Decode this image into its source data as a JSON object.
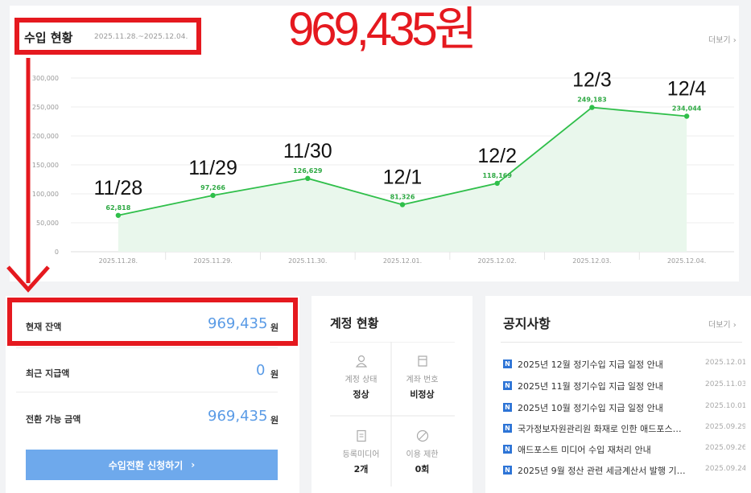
{
  "income": {
    "title": "수입 현황",
    "date_range": "2025.11.28.~2025.12.04.",
    "more": "더보기 ›",
    "total_highlight": "969,435원"
  },
  "chart_data": {
    "type": "area",
    "x": [
      "2025.11.28.",
      "2025.11.29.",
      "2025.11.30.",
      "2025.12.01.",
      "2025.12.02.",
      "2025.12.03.",
      "2025.12.04."
    ],
    "values": [
      62818,
      97266,
      126629,
      81326,
      118169,
      249183,
      234044
    ],
    "data_labels": [
      "62,818",
      "97,266",
      "126,629",
      "81,326",
      "118,169",
      "249,183",
      "234,044"
    ],
    "date_annotations": [
      "11/28",
      "11/29",
      "11/30",
      "12/1",
      "12/2",
      "12/3",
      "12/4"
    ],
    "y_ticks": [
      "300,000",
      "250,000",
      "200,000",
      "150,000",
      "100,000",
      "50,000",
      "0"
    ],
    "ylim": [
      0,
      300000
    ],
    "line_color": "#2fbf4a",
    "fill_color": "#e9f7ec",
    "grid": true
  },
  "balance": {
    "current_label": "현재 잔액",
    "current_value": "969,435",
    "recent_label": "최근 지급액",
    "recent_value": "0",
    "convertible_label": "전환 가능 금액",
    "convertible_value": "969,435",
    "unit": "원",
    "apply_button": "수입전환 신청하기",
    "apply_arrow": "›"
  },
  "account": {
    "title": "계정 현황",
    "items": [
      {
        "label": "계정 상태",
        "value": "정상",
        "icon": "person-icon"
      },
      {
        "label": "계좌 번호",
        "value": "비정상",
        "icon": "card-icon"
      },
      {
        "label": "등록미디어",
        "value": "2개",
        "icon": "document-icon"
      },
      {
        "label": "이용 제한",
        "value": "0회",
        "icon": "ban-icon"
      }
    ]
  },
  "notices": {
    "title": "공지사항",
    "more": "더보기 ›",
    "badge": "N",
    "items": [
      {
        "title": "2025년 12월 정기수입 지급 일정 안내",
        "date": "2025.12.01"
      },
      {
        "title": "2025년 11월 정기수입 지급 일정 안내",
        "date": "2025.11.03"
      },
      {
        "title": "2025년 10월 정기수입 지급 일정 안내",
        "date": "2025.10.01"
      },
      {
        "title": "국가정보자원관리원 화재로 인한 애드포스…",
        "date": "2025.09.29"
      },
      {
        "title": "애드포스트 미디어 수입 재처리 안내",
        "date": "2025.09.26"
      },
      {
        "title": "2025년 9월 정산 관련 세금계산서 발행 기…",
        "date": "2025.09.24"
      }
    ]
  }
}
